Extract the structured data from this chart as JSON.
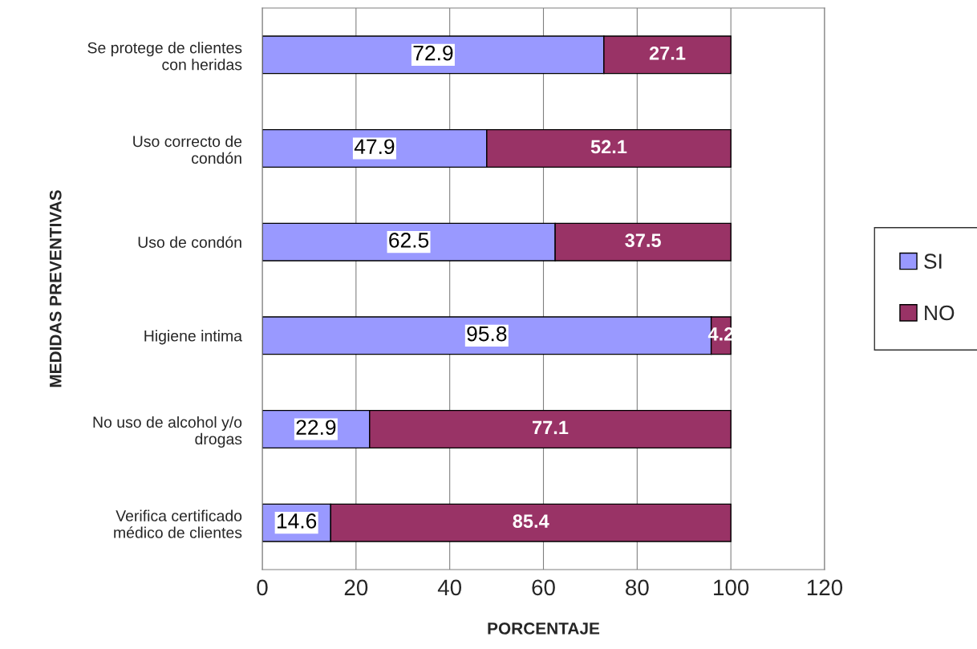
{
  "chart_data": {
    "type": "bar",
    "orientation": "horizontal",
    "stacked": true,
    "categories": [
      "Se protege de clientes\ncon heridas",
      "Uso correcto de\ncondón",
      "Uso de condón",
      "Higiene intima",
      "No uso de alcohol y/o\ndrogas",
      "Verifica certificado\nmédico de clientes"
    ],
    "series": [
      {
        "name": "SI",
        "color": "#9999ff",
        "values": [
          72.9,
          47.9,
          62.5,
          95.8,
          22.9,
          14.6
        ]
      },
      {
        "name": "NO",
        "color": "#993366",
        "values": [
          27.1,
          52.1,
          37.5,
          4.2,
          77.1,
          85.4
        ]
      }
    ],
    "xlim": [
      0,
      120
    ],
    "xticks": [
      0,
      20,
      40,
      60,
      80,
      100,
      120
    ],
    "xlabel": "PORCENTAJE",
    "ylabel": "MEDIDAS PREVENTIVAS",
    "grid": "x",
    "legend": "right",
    "data_labels": true
  }
}
